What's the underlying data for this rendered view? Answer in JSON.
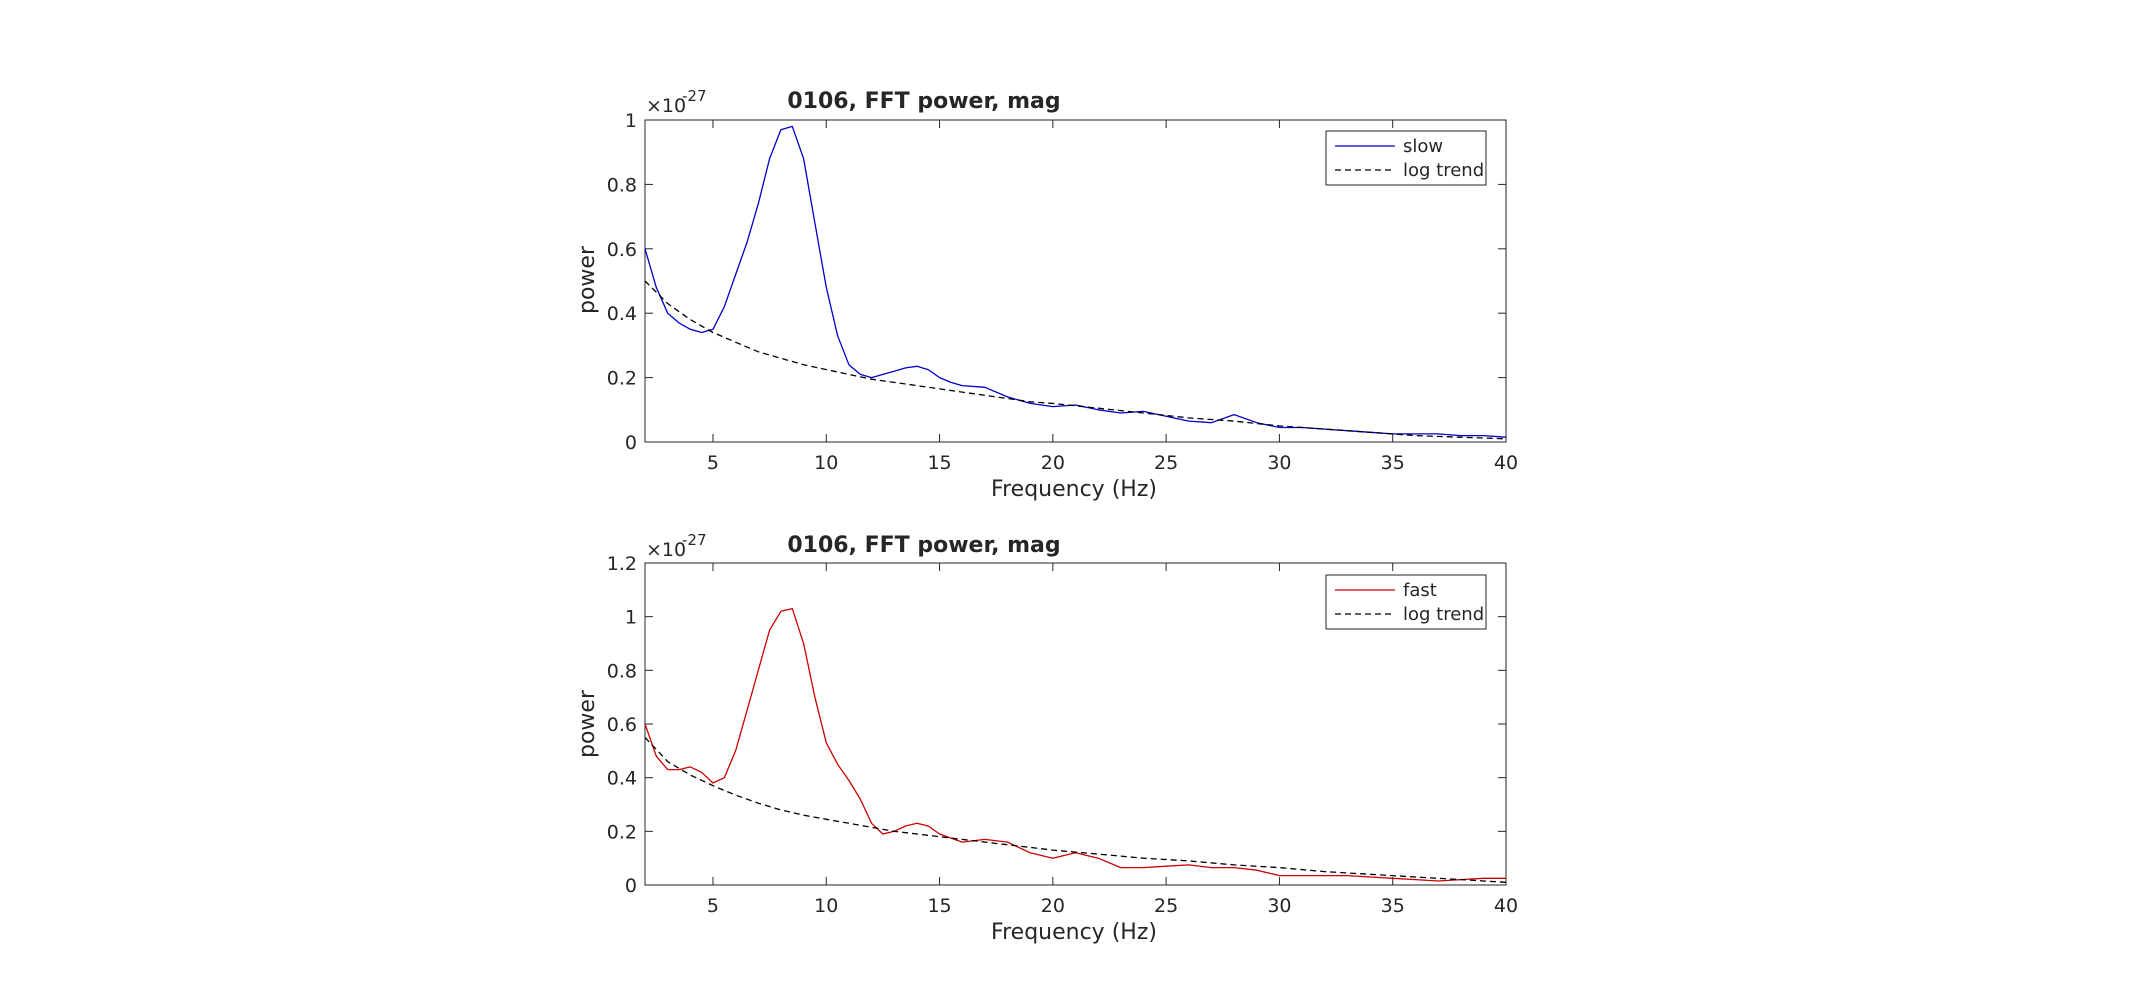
{
  "chart_data": [
    {
      "type": "line",
      "title": "0106, FFT power, mag",
      "xlabel": "Frequency (Hz)",
      "ylabel": "power",
      "y_exponent": "-27",
      "y_exponent_base": "×10",
      "xlim": [
        2,
        40
      ],
      "ylim": [
        0,
        1
      ],
      "xticks": [
        5,
        10,
        15,
        20,
        25,
        30,
        35,
        40
      ],
      "yticks": [
        0,
        0.2,
        0.4,
        0.6,
        0.8,
        1
      ],
      "ytick_labels": [
        "0",
        "0.2",
        "0.4",
        "0.6",
        "0.8",
        "1"
      ],
      "legend_location": "top-right",
      "series": [
        {
          "name": "slow",
          "color": "#0000cc",
          "style": "solid",
          "x": [
            2,
            2.5,
            3,
            3.5,
            4,
            4.5,
            5,
            5.5,
            6,
            6.5,
            7,
            7.5,
            8,
            8.5,
            9,
            9.5,
            10,
            10.5,
            11,
            11.5,
            12,
            12.5,
            13,
            13.5,
            14,
            14.5,
            15,
            15.5,
            16,
            17,
            18,
            19,
            20,
            21,
            22,
            23,
            24,
            25,
            26,
            27,
            28,
            29,
            30,
            31,
            32,
            33,
            34,
            35,
            36,
            37,
            38,
            39,
            40
          ],
          "y": [
            0.6,
            0.48,
            0.4,
            0.37,
            0.35,
            0.34,
            0.35,
            0.42,
            0.52,
            0.62,
            0.74,
            0.88,
            0.97,
            0.98,
            0.88,
            0.68,
            0.48,
            0.33,
            0.24,
            0.21,
            0.2,
            0.21,
            0.22,
            0.23,
            0.235,
            0.225,
            0.2,
            0.185,
            0.175,
            0.17,
            0.14,
            0.12,
            0.11,
            0.115,
            0.1,
            0.09,
            0.095,
            0.08,
            0.065,
            0.06,
            0.085,
            0.06,
            0.045,
            0.045,
            0.04,
            0.035,
            0.03,
            0.025,
            0.025,
            0.025,
            0.02,
            0.02,
            0.015
          ]
        },
        {
          "name": "log trend",
          "color": "#000000",
          "style": "dashed",
          "x": [
            2,
            3,
            4,
            5,
            6,
            7,
            8,
            9,
            10,
            11,
            12,
            13,
            14,
            15,
            16,
            17,
            18,
            19,
            20,
            22,
            24,
            26,
            28,
            30,
            32,
            34,
            36,
            38,
            40
          ],
          "y": [
            0.5,
            0.43,
            0.38,
            0.34,
            0.31,
            0.28,
            0.26,
            0.24,
            0.225,
            0.21,
            0.195,
            0.185,
            0.175,
            0.165,
            0.155,
            0.145,
            0.135,
            0.125,
            0.12,
            0.105,
            0.09,
            0.075,
            0.065,
            0.05,
            0.04,
            0.03,
            0.02,
            0.015,
            0.01
          ]
        }
      ]
    },
    {
      "type": "line",
      "title": "0106, FFT power, mag",
      "xlabel": "Frequency (Hz)",
      "ylabel": "power",
      "y_exponent": "-27",
      "y_exponent_base": "×10",
      "xlim": [
        2,
        40
      ],
      "ylim": [
        0,
        1.2
      ],
      "xticks": [
        5,
        10,
        15,
        20,
        25,
        30,
        35,
        40
      ],
      "yticks": [
        0,
        0.2,
        0.4,
        0.6,
        0.8,
        1,
        1.2
      ],
      "ytick_labels": [
        "0",
        "0.2",
        "0.4",
        "0.6",
        "0.8",
        "1",
        "1.2"
      ],
      "legend_location": "top-right",
      "series": [
        {
          "name": "fast",
          "color": "#cc0000",
          "style": "solid",
          "x": [
            2,
            2.5,
            3,
            3.5,
            4,
            4.5,
            5,
            5.5,
            6,
            6.5,
            7,
            7.5,
            8,
            8.5,
            9,
            9.5,
            10,
            10.5,
            11,
            11.5,
            12,
            12.5,
            13,
            13.5,
            14,
            14.5,
            15,
            16,
            17,
            18,
            19,
            20,
            21,
            22,
            23,
            24,
            25,
            26,
            27,
            28,
            29,
            30,
            31,
            32,
            33,
            34,
            35,
            36,
            37,
            38,
            39,
            40
          ],
          "y": [
            0.6,
            0.48,
            0.43,
            0.43,
            0.44,
            0.42,
            0.38,
            0.4,
            0.5,
            0.65,
            0.8,
            0.95,
            1.02,
            1.03,
            0.9,
            0.7,
            0.53,
            0.45,
            0.39,
            0.32,
            0.23,
            0.19,
            0.2,
            0.22,
            0.23,
            0.22,
            0.19,
            0.16,
            0.17,
            0.16,
            0.12,
            0.1,
            0.12,
            0.1,
            0.065,
            0.065,
            0.07,
            0.075,
            0.065,
            0.065,
            0.055,
            0.035,
            0.035,
            0.035,
            0.035,
            0.03,
            0.025,
            0.02,
            0.015,
            0.02,
            0.025,
            0.025
          ]
        },
        {
          "name": "log trend",
          "color": "#000000",
          "style": "dashed",
          "x": [
            2,
            3,
            4,
            5,
            6,
            7,
            8,
            9,
            10,
            11,
            12,
            13,
            14,
            15,
            16,
            17,
            18,
            19,
            20,
            22,
            24,
            26,
            28,
            30,
            32,
            34,
            36,
            38,
            40
          ],
          "y": [
            0.55,
            0.46,
            0.41,
            0.37,
            0.335,
            0.305,
            0.28,
            0.26,
            0.245,
            0.23,
            0.215,
            0.2,
            0.19,
            0.18,
            0.17,
            0.16,
            0.15,
            0.14,
            0.13,
            0.115,
            0.1,
            0.09,
            0.075,
            0.065,
            0.05,
            0.04,
            0.03,
            0.02,
            0.01
          ]
        }
      ]
    }
  ]
}
